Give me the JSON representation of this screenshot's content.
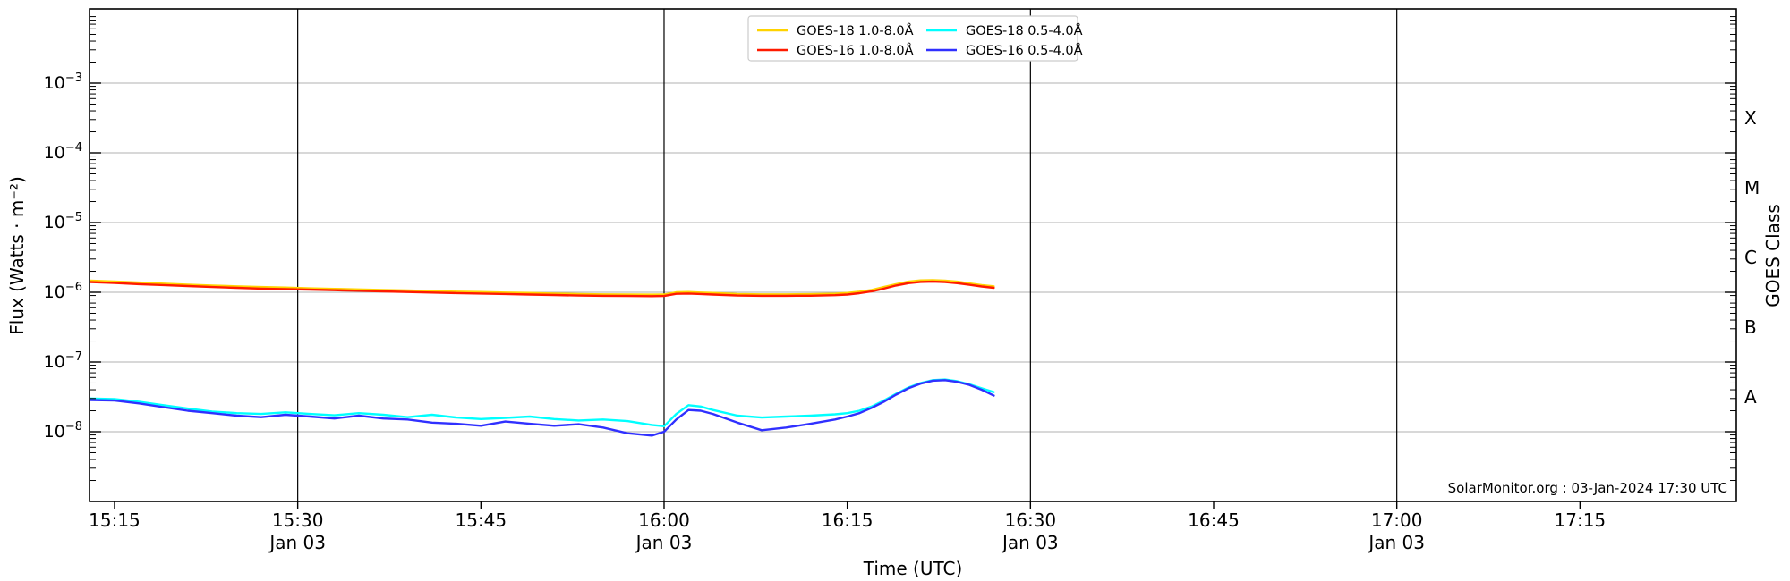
{
  "chart_data": {
    "type": "line",
    "title": "",
    "xlabel": "Time (UTC)",
    "ylabel": "Flux (Watts · m⁻²)",
    "ylabel_right": "GOES Class",
    "annotation": "SolarMonitor.org : 03-Jan-2024 17:30 UTC",
    "x_axis_unit": "minutes after 15:00 UTC, 03-Jan-2024",
    "xlim_minutes": [
      12.95,
      147.8
    ],
    "ylim_log10_watts": [
      -9,
      -1.94
    ],
    "grid": {
      "horizontal_line_exponents": [
        -3,
        -4,
        -5,
        -6,
        -7,
        -8
      ],
      "horizontal_color": "#b0b0b0",
      "vertical_line_minutes": [
        30,
        60,
        90,
        120
      ],
      "vertical_color": "#000000"
    },
    "x_ticks": [
      {
        "minutes": 15,
        "label": "15:15",
        "date": null,
        "gridline": false
      },
      {
        "minutes": 30,
        "label": "15:30",
        "date": "Jan 03",
        "gridline": true
      },
      {
        "minutes": 45,
        "label": "15:45",
        "date": null,
        "gridline": false
      },
      {
        "minutes": 60,
        "label": "16:00",
        "date": "Jan 03",
        "gridline": true
      },
      {
        "minutes": 75,
        "label": "16:15",
        "date": null,
        "gridline": false
      },
      {
        "minutes": 90,
        "label": "16:30",
        "date": "Jan 03",
        "gridline": true
      },
      {
        "minutes": 105,
        "label": "16:45",
        "date": null,
        "gridline": false
      },
      {
        "minutes": 120,
        "label": "17:00",
        "date": "Jan 03",
        "gridline": true
      },
      {
        "minutes": 135,
        "label": "17:15",
        "date": null,
        "gridline": false
      }
    ],
    "y_ticks": [
      {
        "exponent": -3,
        "mantissa": "10",
        "exp_label": "−3"
      },
      {
        "exponent": -4,
        "mantissa": "10",
        "exp_label": "−4"
      },
      {
        "exponent": -5,
        "mantissa": "10",
        "exp_label": "−5"
      },
      {
        "exponent": -6,
        "mantissa": "10",
        "exp_label": "−6"
      },
      {
        "exponent": -7,
        "mantissa": "10",
        "exp_label": "−7"
      },
      {
        "exponent": -8,
        "mantissa": "10",
        "exp_label": "−8"
      }
    ],
    "goes_class_labels": [
      {
        "label": "X",
        "log10_center": -3.5
      },
      {
        "label": "M",
        "log10_center": -4.5
      },
      {
        "label": "C",
        "log10_center": -5.5
      },
      {
        "label": "B",
        "log10_center": -6.5
      },
      {
        "label": "A",
        "log10_center": -7.5
      }
    ],
    "legend": {
      "position": "upper center",
      "columns": 2,
      "border_color": "#cccccc"
    },
    "x_minutes": [
      13,
      15,
      17,
      19,
      21,
      23,
      25,
      27,
      29,
      31,
      33,
      35,
      37,
      39,
      41,
      43,
      45,
      47,
      49,
      51,
      53,
      55,
      57,
      59,
      60,
      61,
      62,
      63,
      64,
      66,
      68,
      70,
      72,
      74,
      75,
      76,
      77,
      78,
      79,
      80,
      81,
      82,
      83,
      84,
      85,
      86,
      87
    ],
    "series": [
      {
        "name": "GOES-18 1.0-8.0Å",
        "color": "#ffd300",
        "values": [
          1.47e-06,
          1.43e-06,
          1.38e-06,
          1.33e-06,
          1.29e-06,
          1.25e-06,
          1.22e-06,
          1.19e-06,
          1.17e-06,
          1.14e-06,
          1.12e-06,
          1.1e-06,
          1.08e-06,
          1.06e-06,
          1.04e-06,
          1.02e-06,
          1.01e-06,
          9.9e-07,
          9.8e-07,
          9.6e-07,
          9.45e-07,
          9.35e-07,
          9.3e-07,
          9.25e-07,
          9.3e-07,
          1e-06,
          1.01e-06,
          9.9e-07,
          9.8e-07,
          9.45e-07,
          9.35e-07,
          9.35e-07,
          9.4e-07,
          9.55e-07,
          9.8e-07,
          1.02e-06,
          1.08e-06,
          1.19e-06,
          1.31e-06,
          1.42e-06,
          1.48e-06,
          1.49e-06,
          1.47e-06,
          1.42e-06,
          1.34e-06,
          1.27e-06,
          1.22e-06
        ]
      },
      {
        "name": "GOES-16 1.0-8.0Å",
        "color": "#ff1a00",
        "values": [
          1.4e-06,
          1.36e-06,
          1.31e-06,
          1.27e-06,
          1.23e-06,
          1.19e-06,
          1.16e-06,
          1.13e-06,
          1.11e-06,
          1.09e-06,
          1.07e-06,
          1.05e-06,
          1.03e-06,
          1.01e-06,
          9.9e-07,
          9.75e-07,
          9.6e-07,
          9.45e-07,
          9.3e-07,
          9.15e-07,
          9e-07,
          8.9e-07,
          8.85e-07,
          8.8e-07,
          8.85e-07,
          9.5e-07,
          9.6e-07,
          9.45e-07,
          9.3e-07,
          9e-07,
          8.9e-07,
          8.9e-07,
          8.95e-07,
          9.1e-07,
          9.3e-07,
          9.7e-07,
          1.03e-06,
          1.13e-06,
          1.25e-06,
          1.35e-06,
          1.41e-06,
          1.42e-06,
          1.4e-06,
          1.35e-06,
          1.28e-06,
          1.21e-06,
          1.16e-06
        ]
      },
      {
        "name": "GOES-18 0.5-4.0Å",
        "color": "#00ffff",
        "values": [
          3e-08,
          2.95e-08,
          2.7e-08,
          2.4e-08,
          2.15e-08,
          1.95e-08,
          1.85e-08,
          1.8e-08,
          1.9e-08,
          1.8e-08,
          1.72e-08,
          1.85e-08,
          1.75e-08,
          1.62e-08,
          1.75e-08,
          1.6e-08,
          1.52e-08,
          1.58e-08,
          1.65e-08,
          1.52e-08,
          1.45e-08,
          1.5e-08,
          1.42e-08,
          1.25e-08,
          1.2e-08,
          1.8e-08,
          2.4e-08,
          2.3e-08,
          2.05e-08,
          1.7e-08,
          1.6e-08,
          1.65e-08,
          1.7e-08,
          1.78e-08,
          1.85e-08,
          2e-08,
          2.3e-08,
          2.8e-08,
          3.5e-08,
          4.3e-08,
          5e-08,
          5.5e-08,
          5.6e-08,
          5.3e-08,
          4.8e-08,
          4.2e-08,
          3.7e-08
        ]
      },
      {
        "name": "GOES-16 0.5-4.0Å",
        "color": "#3030ff",
        "values": [
          2.85e-08,
          2.8e-08,
          2.55e-08,
          2.25e-08,
          2e-08,
          1.85e-08,
          1.7e-08,
          1.62e-08,
          1.75e-08,
          1.65e-08,
          1.55e-08,
          1.7e-08,
          1.55e-08,
          1.5e-08,
          1.35e-08,
          1.3e-08,
          1.22e-08,
          1.4e-08,
          1.3e-08,
          1.22e-08,
          1.28e-08,
          1.15e-08,
          9.5e-09,
          8.8e-09,
          1e-08,
          1.5e-08,
          2.05e-08,
          2e-08,
          1.8e-08,
          1.35e-08,
          1.05e-08,
          1.15e-08,
          1.3e-08,
          1.5e-08,
          1.65e-08,
          1.85e-08,
          2.2e-08,
          2.7e-08,
          3.4e-08,
          4.2e-08,
          4.9e-08,
          5.4e-08,
          5.5e-08,
          5.2e-08,
          4.7e-08,
          4e-08,
          3.3e-08
        ]
      }
    ]
  }
}
